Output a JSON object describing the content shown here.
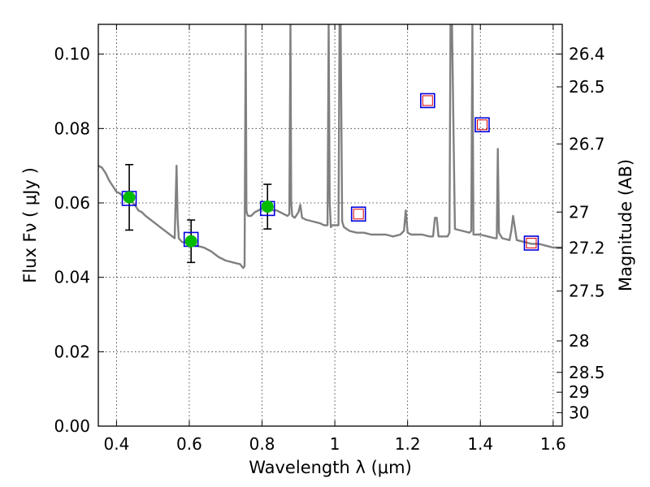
{
  "chart_data": {
    "type": "line",
    "xlabel": "Wavelength  λ (μm)",
    "ylabel": "Flux  Fν  ( μJy )",
    "y2label": "Magnitude (AB)",
    "xlim": [
      0.35,
      1.625
    ],
    "ylim": [
      0.0,
      0.108
    ],
    "grid": true,
    "x_ticks": [
      0.4,
      0.6,
      0.8,
      1.0,
      1.2,
      1.4,
      1.6
    ],
    "x_tick_labels": [
      "0.4",
      "0.6",
      "0.8",
      "1",
      "1.2",
      "1.4",
      "1.6"
    ],
    "y_ticks": [
      0.0,
      0.02,
      0.04,
      0.06,
      0.08,
      0.1
    ],
    "y_tick_labels": [
      "0.00",
      "0.02",
      "0.04",
      "0.06",
      "0.08",
      "0.10"
    ],
    "y2_tick_labels": [
      "26.4",
      "26.5",
      "26.7",
      "27",
      "27.2",
      "27.5",
      "28",
      "28.5",
      "29",
      "30"
    ],
    "y2_tick_mags": [
      26.4,
      26.5,
      26.7,
      27.0,
      27.2,
      27.5,
      28.0,
      28.5,
      29.0,
      30.0
    ],
    "colors": {
      "model": "#808080",
      "observed": "#00bb00",
      "synthetic": "#0000dd",
      "upper_limit": "#dd0000",
      "errorbar": "#000000"
    },
    "series": [
      {
        "type": "line",
        "x": [
          0.35,
          0.36,
          0.37,
          0.38,
          0.39,
          0.4,
          0.41,
          0.42,
          0.43,
          0.44,
          0.45,
          0.46,
          0.47,
          0.48,
          0.5,
          0.52,
          0.54,
          0.56,
          0.565,
          0.568,
          0.571,
          0.58,
          0.6,
          0.62,
          0.64,
          0.66,
          0.68,
          0.7,
          0.72,
          0.74,
          0.748,
          0.752,
          0.755,
          0.757,
          0.759,
          0.762,
          0.77,
          0.78,
          0.79,
          0.8,
          0.81,
          0.82,
          0.83,
          0.84,
          0.85,
          0.86,
          0.87,
          0.875,
          0.878,
          0.88,
          0.883,
          0.89,
          0.9,
          0.905,
          0.91,
          0.92,
          0.94,
          0.96,
          0.97,
          0.98,
          0.983,
          0.986,
          0.989,
          0.993,
          1.0,
          1.01,
          1.013,
          1.016,
          1.02,
          1.025,
          1.04,
          1.06,
          1.08,
          1.1,
          1.12,
          1.14,
          1.16,
          1.18,
          1.19,
          1.195,
          1.2,
          1.21,
          1.22,
          1.24,
          1.26,
          1.27,
          1.275,
          1.28,
          1.285,
          1.29,
          1.3,
          1.31,
          1.315,
          1.318,
          1.322,
          1.33,
          1.35,
          1.37,
          1.375,
          1.378,
          1.381,
          1.39,
          1.4,
          1.42,
          1.44,
          1.445,
          1.448,
          1.451,
          1.46,
          1.48,
          1.485,
          1.49,
          1.5,
          1.52,
          1.54,
          1.56,
          1.58,
          1.6,
          1.625
        ],
        "y": [
          0.07,
          0.0695,
          0.068,
          0.066,
          0.0645,
          0.063,
          0.0625,
          0.0615,
          0.061,
          0.0605,
          0.0595,
          0.058,
          0.0575,
          0.0565,
          0.055,
          0.0535,
          0.052,
          0.0505,
          0.07,
          0.056,
          0.0505,
          0.0495,
          0.049,
          0.0485,
          0.048,
          0.047,
          0.0455,
          0.0445,
          0.044,
          0.0435,
          0.0425,
          0.043,
          0.108,
          0.058,
          0.057,
          0.0565,
          0.0565,
          0.0575,
          0.058,
          0.0585,
          0.0585,
          0.0585,
          0.058,
          0.058,
          0.0575,
          0.057,
          0.0565,
          0.057,
          0.108,
          0.06,
          0.0565,
          0.056,
          0.0575,
          0.0595,
          0.056,
          0.0555,
          0.055,
          0.0545,
          0.054,
          0.054,
          0.108,
          0.06,
          0.0535,
          0.054,
          0.054,
          0.054,
          0.108,
          0.108,
          0.055,
          0.0535,
          0.0525,
          0.052,
          0.052,
          0.0515,
          0.0515,
          0.0515,
          0.051,
          0.0515,
          0.0525,
          0.058,
          0.052,
          0.0515,
          0.0515,
          0.0515,
          0.051,
          0.051,
          0.056,
          0.056,
          0.051,
          0.051,
          0.051,
          0.051,
          0.052,
          0.108,
          0.108,
          0.053,
          0.0525,
          0.052,
          0.0525,
          0.108,
          0.0515,
          0.0515,
          0.0515,
          0.051,
          0.0505,
          0.0505,
          0.0745,
          0.052,
          0.0505,
          0.05,
          0.0525,
          0.0565,
          0.05,
          0.0495,
          0.049,
          0.049,
          0.0485,
          0.048,
          0.048
        ]
      },
      {
        "type": "errorbar",
        "x": [
          0.435,
          0.605,
          0.815
        ],
        "y": [
          0.0615,
          0.0497,
          0.059
        ],
        "yerr_low": [
          0.0088,
          0.0057,
          0.006
        ],
        "yerr_high": [
          0.0088,
          0.0057,
          0.006
        ]
      },
      {
        "type": "scatter-square",
        "x": [
          0.435,
          0.605,
          0.815,
          1.065,
          1.255,
          1.405,
          1.54
        ],
        "y": [
          0.0612,
          0.0502,
          0.0585,
          0.057,
          0.0875,
          0.081,
          0.0492
        ]
      },
      {
        "type": "scatter-square-small",
        "x": [
          1.065,
          1.255,
          1.405,
          1.54
        ],
        "y": [
          0.057,
          0.0875,
          0.081,
          0.0492
        ]
      }
    ]
  }
}
